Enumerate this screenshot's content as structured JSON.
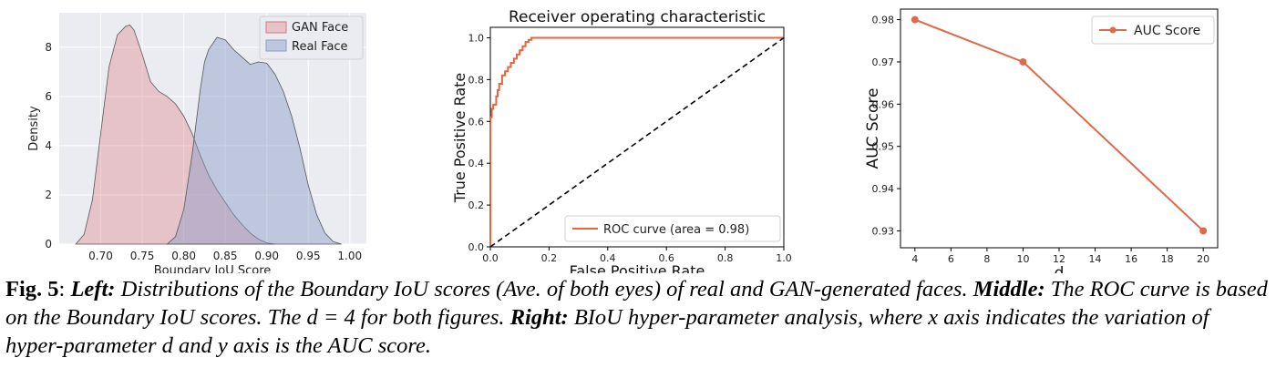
{
  "chart_data": [
    {
      "type": "area",
      "title": "",
      "xlabel": "Boundary IoU Score",
      "ylabel": "Density",
      "xlim": [
        0.65,
        1.02
      ],
      "ylim": [
        0,
        9.4
      ],
      "xticks": [
        "0.70",
        "0.75",
        "0.80",
        "0.85",
        "0.90",
        "0.95",
        "1.00"
      ],
      "yticks": [
        "0",
        "2",
        "4",
        "6",
        "8"
      ],
      "grid": true,
      "legend_position": "top-right",
      "series": [
        {
          "name": "GAN Face",
          "color": "#d9777d",
          "x": [
            0.67,
            0.68,
            0.69,
            0.7,
            0.71,
            0.72,
            0.73,
            0.735,
            0.74,
            0.75,
            0.76,
            0.77,
            0.78,
            0.79,
            0.8,
            0.81,
            0.82,
            0.83,
            0.84,
            0.85,
            0.86,
            0.87,
            0.88,
            0.89,
            0.9,
            0.91
          ],
          "y": [
            0.0,
            0.4,
            1.8,
            4.5,
            7.2,
            8.5,
            8.85,
            8.9,
            8.7,
            7.7,
            6.6,
            6.2,
            6.0,
            5.7,
            5.2,
            4.5,
            3.6,
            2.8,
            2.2,
            1.7,
            1.2,
            0.8,
            0.45,
            0.2,
            0.05,
            0.0
          ]
        },
        {
          "name": "Real Face",
          "color": "#8a9cc8",
          "x": [
            0.78,
            0.79,
            0.8,
            0.81,
            0.82,
            0.825,
            0.83,
            0.84,
            0.85,
            0.86,
            0.87,
            0.88,
            0.89,
            0.9,
            0.91,
            0.92,
            0.93,
            0.94,
            0.95,
            0.96,
            0.97,
            0.98,
            0.99
          ],
          "y": [
            0.0,
            0.3,
            1.4,
            3.6,
            6.3,
            7.4,
            7.9,
            8.4,
            8.3,
            7.9,
            7.6,
            7.3,
            7.4,
            7.35,
            6.9,
            6.2,
            5.2,
            3.9,
            2.4,
            1.2,
            0.45,
            0.1,
            0.0
          ]
        }
      ]
    },
    {
      "type": "line",
      "title": "Receiver operating characteristic",
      "xlabel": "False Positive Rate",
      "ylabel": "True Positive Rate",
      "xlim": [
        0,
        1.0
      ],
      "ylim": [
        0,
        1.05
      ],
      "xticks": [
        "0.0",
        "0.2",
        "0.4",
        "0.6",
        "0.8",
        "1.0"
      ],
      "yticks": [
        "0.0",
        "0.2",
        "0.4",
        "0.6",
        "0.8",
        "1.0"
      ],
      "legend_position": "bottom-right",
      "series": [
        {
          "name": "ROC curve (area = 0.98)",
          "color": "#e8643c",
          "x": [
            0,
            0,
            0.005,
            0.005,
            0.01,
            0.01,
            0.02,
            0.02,
            0.025,
            0.025,
            0.03,
            0.03,
            0.04,
            0.04,
            0.05,
            0.05,
            0.06,
            0.06,
            0.07,
            0.07,
            0.08,
            0.08,
            0.09,
            0.09,
            0.1,
            0.1,
            0.11,
            0.11,
            0.12,
            0.12,
            0.13,
            0.13,
            0.14,
            0.14,
            1.0
          ],
          "y": [
            0,
            0.62,
            0.62,
            0.66,
            0.66,
            0.68,
            0.68,
            0.72,
            0.72,
            0.75,
            0.75,
            0.78,
            0.78,
            0.82,
            0.82,
            0.84,
            0.84,
            0.86,
            0.86,
            0.88,
            0.88,
            0.9,
            0.9,
            0.92,
            0.92,
            0.94,
            0.94,
            0.96,
            0.96,
            0.98,
            0.98,
            0.99,
            0.99,
            1.0,
            1.0
          ]
        },
        {
          "name": "",
          "color": "#000000",
          "dash": true,
          "x": [
            0,
            1.0
          ],
          "y": [
            0,
            1.0
          ]
        }
      ]
    },
    {
      "type": "line",
      "title": "",
      "xlabel": "d",
      "ylabel": "AUC Score",
      "xlim": [
        3.2,
        20.8
      ],
      "ylim": [
        0.926,
        0.9825
      ],
      "xticks": [
        "4",
        "6",
        "8",
        "10",
        "12",
        "14",
        "16",
        "18",
        "20"
      ],
      "yticks": [
        "0.93",
        "0.94",
        "0.95",
        "0.96",
        "0.97",
        "0.98"
      ],
      "legend_position": "top-right",
      "series": [
        {
          "name": "AUC Score",
          "color": "#dd6a4a",
          "x": [
            4,
            10,
            20
          ],
          "y": [
            0.98,
            0.97,
            0.93
          ]
        }
      ]
    }
  ],
  "caption": {
    "fig_label": "Fig. 5",
    "colon": ":",
    "left_label": "Left:",
    "left_text": " Distributions of the Boundary IoU scores (Ave. of both eyes) of real and GAN-generated faces. ",
    "middle_label": "Middle:",
    "middle_text": " The ROC curve is based on the Boundary IoU scores. The d = 4 for both figures. ",
    "right_label": "Right:",
    "right_text": " BIoU hyper-parameter analysis, where x axis indicates the variation of hyper-parameter d and y axis is the AUC score."
  }
}
